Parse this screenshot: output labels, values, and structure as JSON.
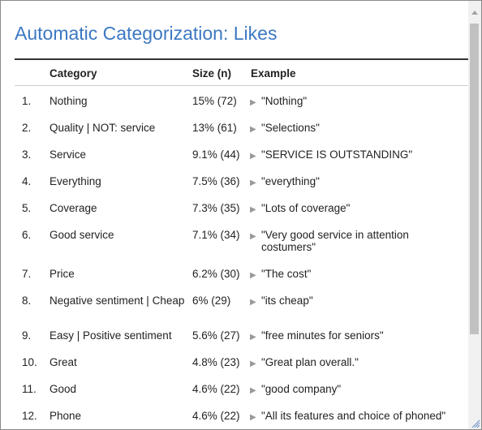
{
  "title": "Automatic Categorization: Likes",
  "table": {
    "headers": {
      "category": "Category",
      "size": "Size (n)",
      "example": "Example"
    },
    "rows": [
      {
        "num": "1.",
        "category": "Nothing",
        "size": "15% (72)",
        "example": "\"Nothing\""
      },
      {
        "num": "2.",
        "category": "Quality | NOT: service",
        "size": "13% (61)",
        "example": "\"Selections\""
      },
      {
        "num": "3.",
        "category": "Service",
        "size": "9.1% (44)",
        "example": "\"SERVICE IS OUTSTANDING\""
      },
      {
        "num": "4.",
        "category": "Everything",
        "size": "7.5% (36)",
        "example": "\"everything\""
      },
      {
        "num": "5.",
        "category": "Coverage",
        "size": "7.3% (35)",
        "example": "\"Lots of coverage\""
      },
      {
        "num": "6.",
        "category": "Good service",
        "size": "7.1% (34)",
        "example": "\"Very good service in attention costumers\""
      },
      {
        "num": "7.",
        "category": "Price",
        "size": "6.2% (30)",
        "example": "\"The cost\""
      },
      {
        "num": "8.",
        "category": "Negative sentiment | Cheap",
        "size": "6% (29)",
        "example": "\"its cheap\""
      },
      {
        "num": "9.",
        "category": "Easy | Positive sentiment",
        "size": "5.6% (27)",
        "example": "\"free minutes for seniors\""
      },
      {
        "num": "10.",
        "category": "Great",
        "size": "4.8% (23)",
        "example": "\"Great plan overall.\""
      },
      {
        "num": "11.",
        "category": "Good",
        "size": "4.6% (22)",
        "example": "\"good company\""
      },
      {
        "num": "12.",
        "category": "Phone",
        "size": "4.6% (22)",
        "example": "\"All its features and choice of phoned\""
      }
    ]
  },
  "icons": {
    "row_expand": "triangle-right-icon",
    "scroll_up": "arrow-up-icon",
    "resize": "resize-grip-icon"
  },
  "colors": {
    "title": "#3c78c3",
    "rule": "#333333",
    "triangle": "#999999"
  }
}
